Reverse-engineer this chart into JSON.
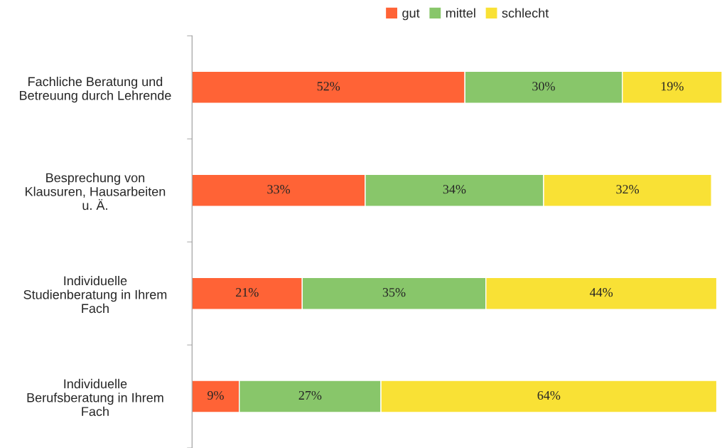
{
  "chart_data": {
    "type": "bar",
    "orientation": "horizontal",
    "stacked": true,
    "legend": "top",
    "tick_labels": "y",
    "grid": false,
    "categories": [
      "Fachliche Beratung und\nBetreuung durch Lehrende",
      "Besprechung von\nKlausuren, Hausarbeiten\nu. Ä.",
      "Individuelle\nStudienberatung in Ihrem\nFach",
      "Individuelle\nBerufsberatung in Ihrem\nFach"
    ],
    "series": [
      {
        "name": "gut",
        "color": "#ff6336",
        "values": [
          52,
          33,
          21,
          9
        ],
        "value_labels": [
          "52%",
          "33%",
          "21%",
          "9%"
        ]
      },
      {
        "name": "mittel",
        "color": "#88c66a",
        "values": [
          30,
          34,
          35,
          27
        ],
        "value_labels": [
          "30%",
          "34%",
          "35%",
          "27%"
        ]
      },
      {
        "name": "schlecht",
        "color": "#f9e135",
        "values": [
          19,
          32,
          44,
          64
        ],
        "value_labels": [
          "19%",
          "32%",
          "44%",
          "64%"
        ]
      }
    ]
  }
}
